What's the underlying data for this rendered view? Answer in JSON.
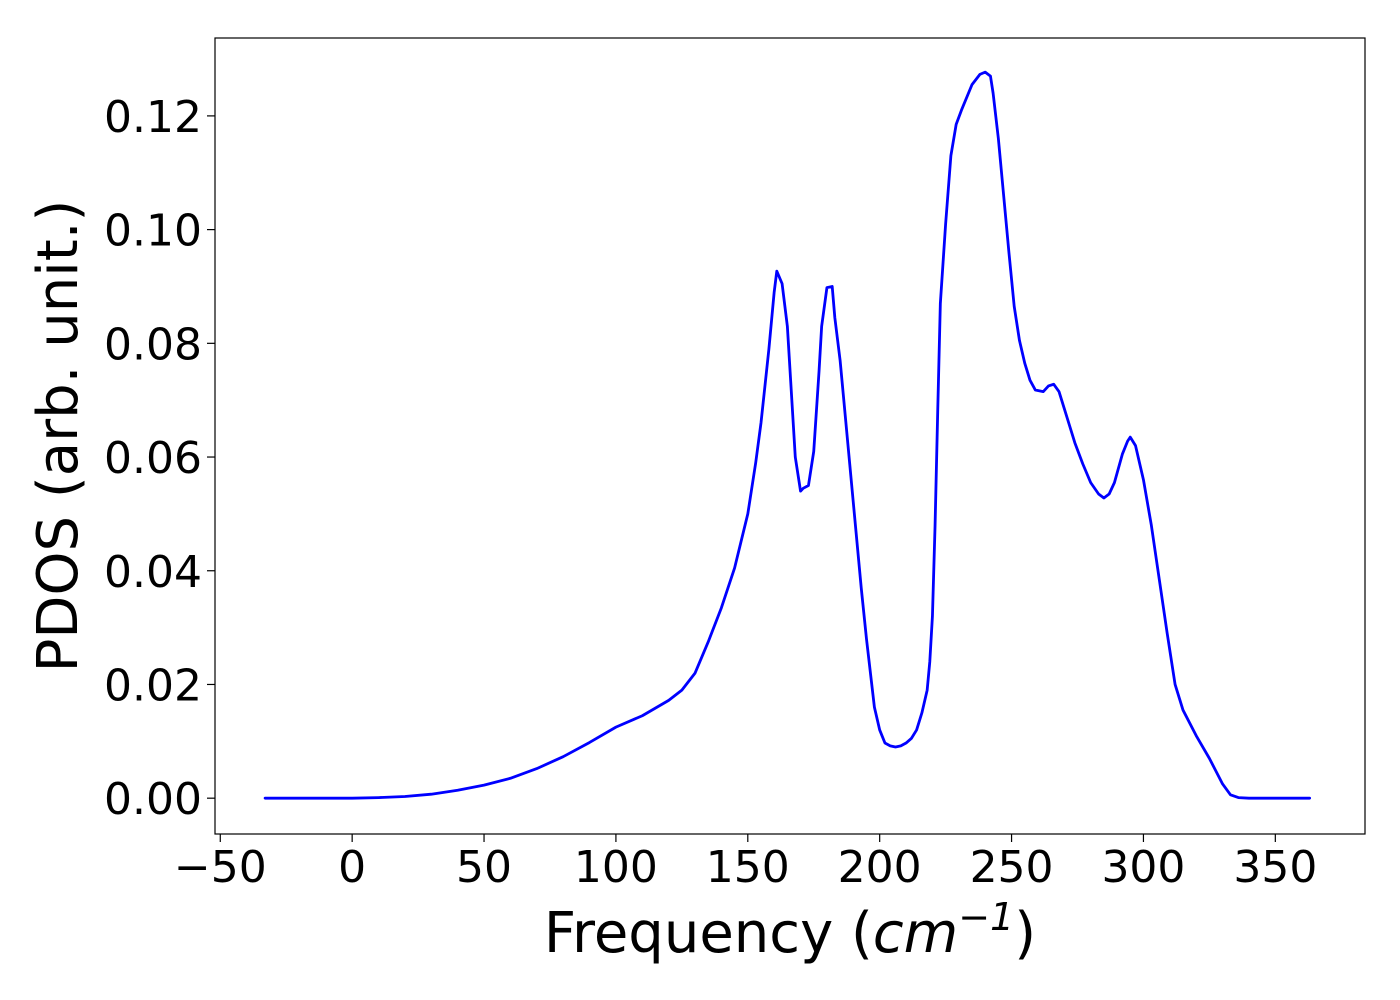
{
  "chart_data": {
    "type": "line",
    "title": "",
    "xlabel": "Frequency",
    "xlabel_unit": "cm",
    "xlabel_unit_exponent": "−1",
    "ylabel": "PDOS (arb. unit.)",
    "xlim": [
      -52,
      384
    ],
    "ylim": [
      -0.0063,
      0.1337
    ],
    "xticks": [
      -50,
      0,
      50,
      100,
      150,
      200,
      250,
      300,
      350
    ],
    "xtick_labels": [
      "−50",
      "0",
      "50",
      "100",
      "150",
      "200",
      "250",
      "300",
      "350"
    ],
    "yticks": [
      0.0,
      0.02,
      0.04,
      0.06,
      0.08,
      0.1,
      0.12
    ],
    "ytick_labels": [
      "0.00",
      "0.02",
      "0.04",
      "0.06",
      "0.08",
      "0.10",
      "0.12"
    ],
    "grid": false,
    "legend": false,
    "series": [
      {
        "color": "#0000ff",
        "x": [
          -33,
          0,
          10,
          20,
          30,
          40,
          50,
          60,
          70,
          80,
          90,
          100,
          110,
          120,
          125,
          130,
          135,
          140,
          145,
          150,
          153,
          155,
          158,
          160,
          161,
          163,
          165,
          168,
          170,
          171,
          173,
          175,
          177,
          178,
          180,
          182,
          183,
          185,
          187,
          190,
          193,
          195,
          198,
          200,
          202,
          204,
          206,
          208,
          210,
          212,
          214,
          216,
          218,
          219,
          220,
          221,
          222,
          223,
          225,
          227,
          229,
          231,
          235,
          238,
          240,
          242,
          243,
          245,
          247,
          249,
          251,
          253,
          255,
          257,
          259,
          262,
          264,
          266,
          268,
          270,
          272,
          274,
          277,
          280,
          283,
          285,
          287,
          289,
          292,
          294,
          295,
          297,
          300,
          303,
          306,
          309,
          312,
          315,
          320,
          325,
          330,
          333,
          336,
          340,
          363
        ],
        "y": [
          0,
          0,
          0.0001,
          0.0003,
          0.0007,
          0.0014,
          0.0023,
          0.0035,
          0.0052,
          0.0073,
          0.0098,
          0.0125,
          0.0145,
          0.0172,
          0.019,
          0.022,
          0.0275,
          0.0335,
          0.0405,
          0.05,
          0.059,
          0.066,
          0.079,
          0.089,
          0.0927,
          0.0905,
          0.083,
          0.06,
          0.054,
          0.0545,
          0.055,
          0.061,
          0.075,
          0.083,
          0.0898,
          0.09,
          0.0845,
          0.077,
          0.067,
          0.052,
          0.037,
          0.028,
          0.016,
          0.012,
          0.0097,
          0.0092,
          0.009,
          0.0092,
          0.0097,
          0.0105,
          0.012,
          0.015,
          0.019,
          0.024,
          0.032,
          0.048,
          0.068,
          0.087,
          0.101,
          0.113,
          0.1185,
          0.121,
          0.1255,
          0.1273,
          0.1277,
          0.127,
          0.124,
          0.116,
          0.106,
          0.096,
          0.0865,
          0.0805,
          0.0765,
          0.0735,
          0.0718,
          0.0715,
          0.0725,
          0.0728,
          0.0715,
          0.0685,
          0.0655,
          0.0625,
          0.0588,
          0.0555,
          0.0535,
          0.0528,
          0.0535,
          0.0555,
          0.0605,
          0.0628,
          0.0635,
          0.062,
          0.056,
          0.048,
          0.0385,
          0.029,
          0.02,
          0.0155,
          0.011,
          0.007,
          0.0025,
          0.0006,
          0.0001,
          0,
          0
        ]
      }
    ]
  }
}
